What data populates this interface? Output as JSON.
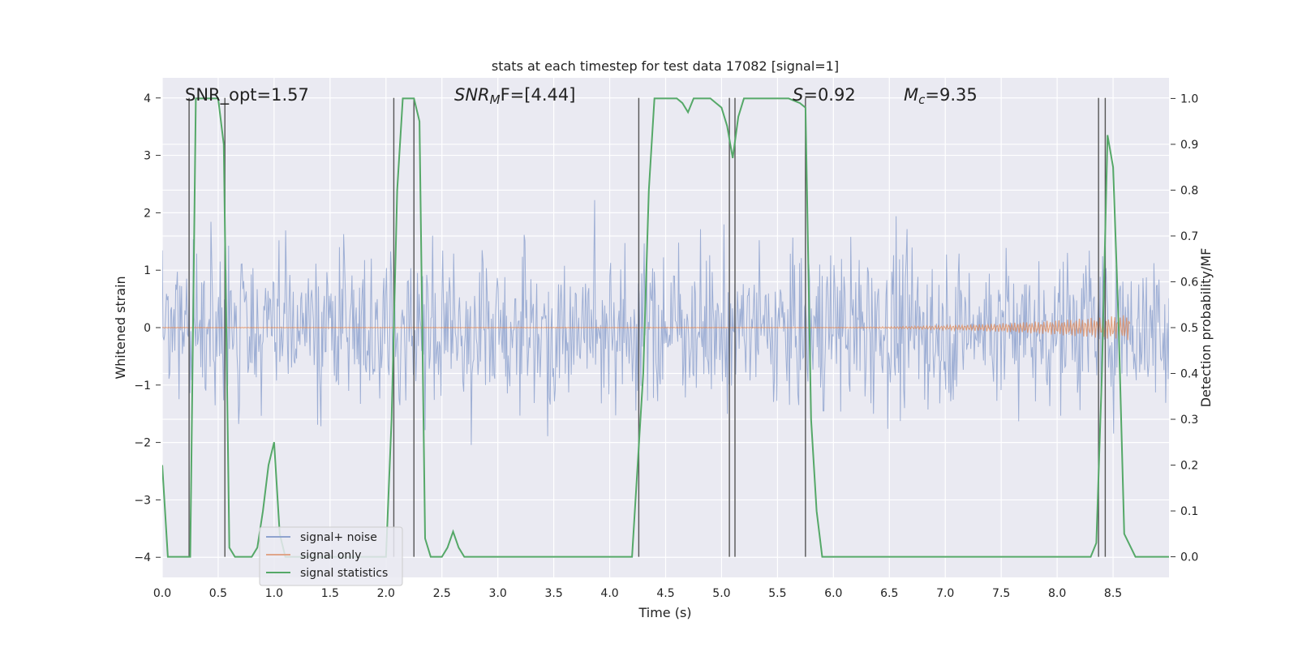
{
  "chart_data": {
    "type": "line",
    "title": "stats at each timestep for test data 17082 [signal=1]",
    "xlabel": "Time (s)",
    "ylabel_left": "Whitened strain",
    "ylabel_right": "Detection probability/MF",
    "xlim": [
      0.0,
      9.0
    ],
    "ylim_left": [
      -4.35,
      4.35
    ],
    "ylim_right": [
      -0.045,
      1.045
    ],
    "grid": true,
    "x_ticks": [
      "0.0",
      "0.5",
      "1.0",
      "1.5",
      "2.0",
      "2.5",
      "3.0",
      "3.5",
      "4.0",
      "4.5",
      "5.0",
      "5.5",
      "6.0",
      "6.5",
      "7.0",
      "7.5",
      "8.0",
      "8.5"
    ],
    "x_tick_values": [
      0.0,
      0.5,
      1.0,
      1.5,
      2.0,
      2.5,
      3.0,
      3.5,
      4.0,
      4.5,
      5.0,
      5.5,
      6.0,
      6.5,
      7.0,
      7.5,
      8.0,
      8.5
    ],
    "y_left_ticks": [
      "4",
      "3",
      "2",
      "1",
      "0",
      "−1",
      "−2",
      "−3",
      "−4"
    ],
    "y_left_tick_values": [
      4,
      3,
      2,
      1,
      0,
      -1,
      -2,
      -3,
      -4
    ],
    "y_right_ticks": [
      "1.0",
      "0.9",
      "0.8",
      "0.7",
      "0.6",
      "0.5",
      "0.4",
      "0.3",
      "0.2",
      "0.1",
      "0.0"
    ],
    "y_right_tick_values": [
      1.0,
      0.9,
      0.8,
      0.7,
      0.6,
      0.5,
      0.4,
      0.3,
      0.2,
      0.1,
      0.0
    ],
    "right_grid_values": [
      0.3,
      0.4,
      0.6,
      0.7,
      0.8,
      0.9
    ],
    "annotations": {
      "snr_opt": "SNR_opt=1.57",
      "snr_mf_sym": "SNR",
      "snr_mf_sub": "M",
      "snr_mf_rest": "F=[4.44]",
      "s_sym": "S",
      "s_rest": "=0.92",
      "mc_sym": "M",
      "mc_sub": "c",
      "mc_rest": "=9.35"
    },
    "legend": {
      "position": "lower-left",
      "entries": [
        {
          "label": "signal+ noise",
          "color": "#8fa3cf"
        },
        {
          "label": "signal only",
          "color": "#e0a58a"
        },
        {
          "label": "signal statistics",
          "color": "#55a868"
        }
      ]
    },
    "series": [
      {
        "name": "signal+ noise",
        "axis": "left",
        "color": "#8fa3cf",
        "description": "noise-dominated whitened strain, roughly within -2.5..3 with spikes",
        "typical_range": [
          -2.6,
          3.0
        ],
        "n_samples": 1200
      },
      {
        "name": "signal only",
        "axis": "left",
        "color": "#dd8452",
        "chirp": {
          "t_start": 5.8,
          "t_end": 8.65,
          "max_amplitude": 0.22
        }
      },
      {
        "name": "signal statistics",
        "axis": "right",
        "color": "#55a868",
        "x": [
          0.0,
          0.05,
          0.1,
          0.15,
          0.2,
          0.25,
          0.3,
          0.35,
          0.4,
          0.45,
          0.5,
          0.55,
          0.6,
          0.65,
          0.7,
          0.75,
          0.8,
          0.85,
          0.9,
          0.95,
          1.0,
          1.05,
          1.1,
          1.15,
          1.2,
          1.3,
          1.4,
          1.5,
          1.6,
          1.7,
          1.8,
          1.9,
          2.0,
          2.05,
          2.1,
          2.15,
          2.2,
          2.25,
          2.3,
          2.35,
          2.4,
          2.45,
          2.5,
          2.55,
          2.6,
          2.65,
          2.7,
          2.8,
          3.0,
          3.5,
          4.0,
          4.1,
          4.2,
          4.3,
          4.35,
          4.4,
          4.5,
          4.6,
          4.65,
          4.7,
          4.75,
          4.8,
          4.9,
          4.95,
          5.0,
          5.05,
          5.1,
          5.15,
          5.2,
          5.3,
          5.5,
          5.6,
          5.7,
          5.75,
          5.8,
          5.85,
          5.9,
          6.0,
          6.5,
          7.0,
          7.5,
          8.0,
          8.2,
          8.3,
          8.35,
          8.4,
          8.45,
          8.5,
          8.55,
          8.6,
          8.7,
          8.8,
          8.9,
          9.0
        ],
        "y": [
          0.2,
          0.0,
          0.0,
          0.0,
          0.0,
          0.0,
          1.0,
          1.0,
          1.0,
          1.0,
          1.0,
          0.9,
          0.02,
          0.0,
          0.0,
          0.0,
          0.0,
          0.02,
          0.1,
          0.2,
          0.25,
          0.05,
          0.0,
          0.0,
          0.0,
          0.0,
          0.0,
          0.0,
          0.0,
          0.0,
          0.0,
          0.0,
          0.0,
          0.3,
          0.8,
          1.0,
          1.0,
          1.0,
          0.95,
          0.04,
          0.0,
          0.0,
          0.0,
          0.02,
          0.055,
          0.02,
          0.0,
          0.0,
          0.0,
          0.0,
          0.0,
          0.0,
          0.0,
          0.4,
          0.8,
          1.0,
          1.0,
          1.0,
          0.99,
          0.97,
          1.0,
          1.0,
          1.0,
          0.99,
          0.98,
          0.94,
          0.87,
          0.96,
          1.0,
          1.0,
          1.0,
          1.0,
          0.99,
          0.98,
          0.3,
          0.1,
          0.0,
          0.0,
          0.0,
          0.0,
          0.0,
          0.0,
          0.0,
          0.0,
          0.03,
          0.4,
          0.92,
          0.85,
          0.5,
          0.05,
          0.0,
          0.0,
          0.0,
          0.0
        ]
      }
    ],
    "vertical_markers": [
      0.24,
      0.56,
      2.07,
      2.25,
      4.26,
      5.07,
      5.12,
      5.75,
      8.37,
      8.43
    ]
  }
}
